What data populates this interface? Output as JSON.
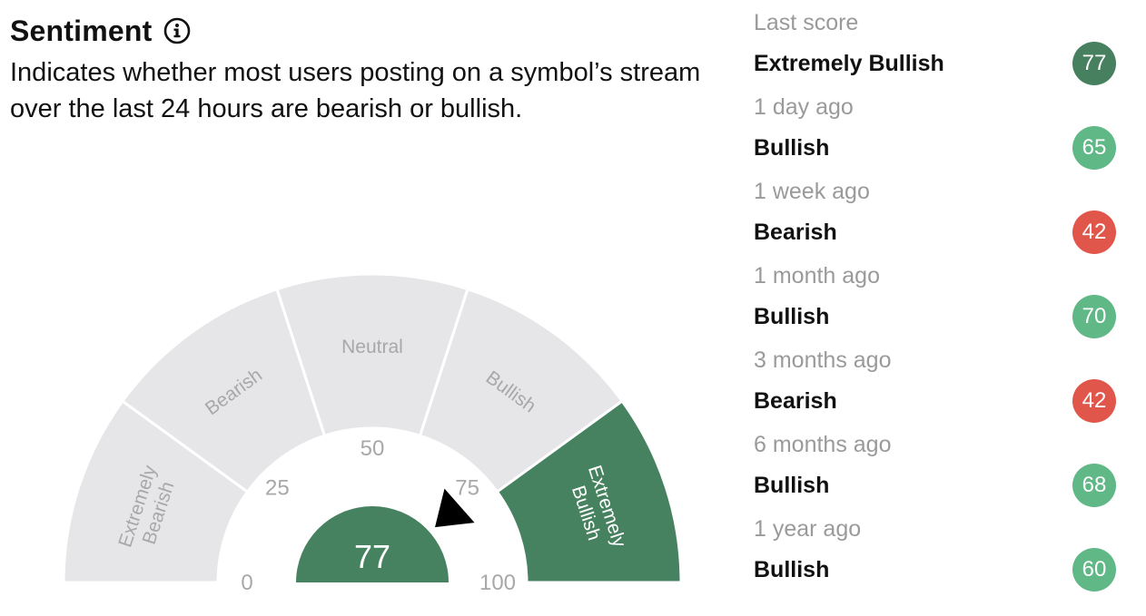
{
  "header": {
    "title": "Sentiment",
    "info_icon": "info-circle-icon",
    "description": "Indicates whether most users posting on a symbol’s stream over the last 24 hours are bearish or bullish."
  },
  "gauge": {
    "current_score": "77",
    "current_value": 77,
    "scale_min": 0,
    "scale_max": 100,
    "ticks": [
      "0",
      "25",
      "50",
      "75",
      "100"
    ],
    "segments": [
      {
        "label": "Extremely\nBearish",
        "active": false
      },
      {
        "label": "Bearish",
        "active": false
      },
      {
        "label": "Neutral",
        "active": false
      },
      {
        "label": "Bullish",
        "active": false
      },
      {
        "label": "Extremely\nBullish",
        "active": true
      }
    ],
    "colors": {
      "segment_inactive": "#e6e6e9",
      "segment_active": "#46825f",
      "label_inactive": "#a8a8a8",
      "label_active": "#ffffff",
      "score_circle": "#46825f",
      "needle": "#000000",
      "tick_text": "#a8a8a8"
    }
  },
  "history": [
    {
      "period": "Last score",
      "label": "Extremely Bullish",
      "score": "77",
      "color": "#46805e"
    },
    {
      "period": "1 day ago",
      "label": "Bullish",
      "score": "65",
      "color": "#5fb886"
    },
    {
      "period": "1 week ago",
      "label": "Bearish",
      "score": "42",
      "color": "#e0564a"
    },
    {
      "period": "1 month ago",
      "label": "Bullish",
      "score": "70",
      "color": "#5fb886"
    },
    {
      "period": "3 months ago",
      "label": "Bearish",
      "score": "42",
      "color": "#e0564a"
    },
    {
      "period": "6 months ago",
      "label": "Bullish",
      "score": "68",
      "color": "#5fb886"
    },
    {
      "period": "1 year ago",
      "label": "Bullish",
      "score": "60",
      "color": "#5fb886"
    }
  ]
}
